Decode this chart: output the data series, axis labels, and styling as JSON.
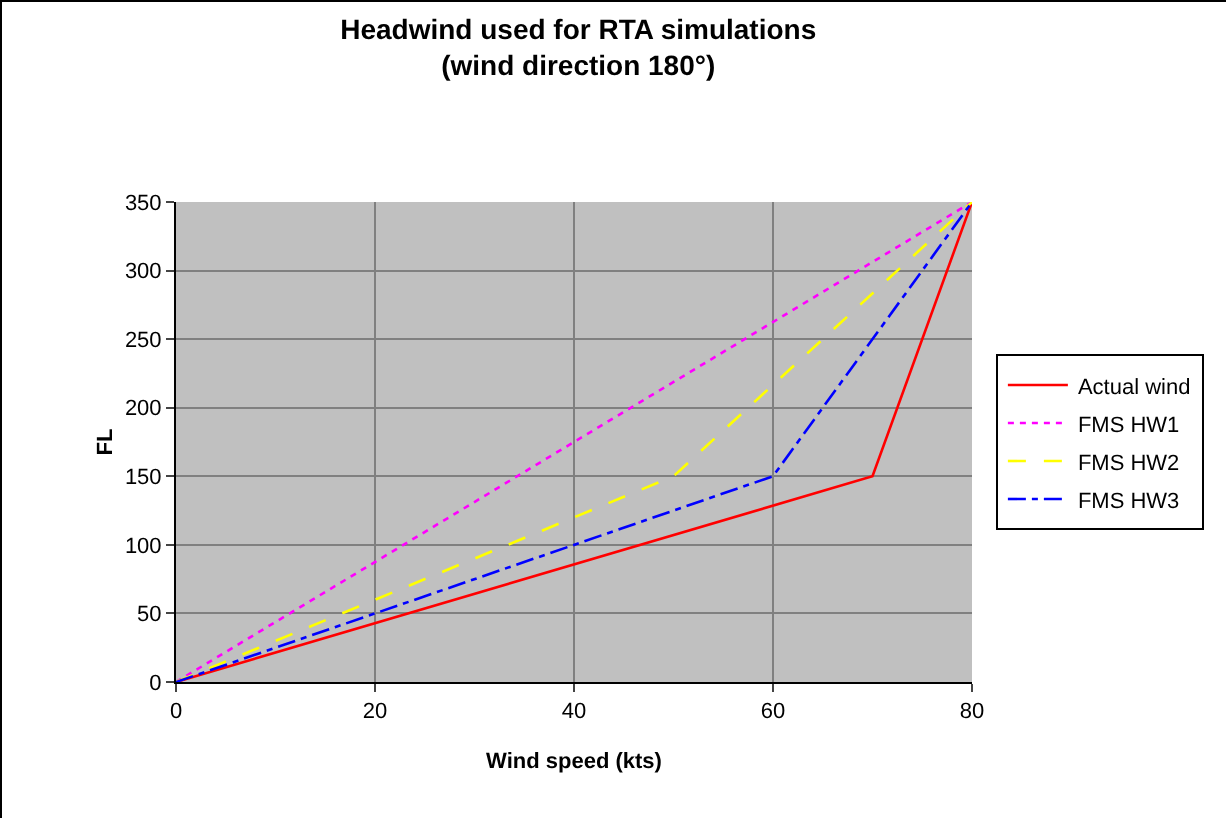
{
  "chart_data": {
    "type": "line",
    "title": "Headwind used for RTA simulations\n(wind direction 180°)",
    "xlabel": "Wind speed (kts)",
    "ylabel": "FL",
    "series": [
      {
        "name": "Actual wind",
        "color": "#ff0000",
        "line_style": "solid",
        "x": [
          0,
          70,
          80
        ],
        "values": [
          0,
          150,
          350
        ]
      },
      {
        "name": "FMS HW1",
        "color": "#ff00ff",
        "line_style": "dotted",
        "x": [
          0,
          80
        ],
        "values": [
          0,
          350
        ]
      },
      {
        "name": "FMS HW2",
        "color": "#ffff00",
        "line_style": "dashed",
        "x": [
          0,
          50,
          80
        ],
        "values": [
          0,
          150,
          350
        ]
      },
      {
        "name": "FMS HW3",
        "color": "#0000ff",
        "line_style": "dashdot",
        "x": [
          0,
          60,
          80
        ],
        "values": [
          0,
          150,
          350
        ]
      }
    ],
    "xlim": [
      0,
      80
    ],
    "xticks": [
      0,
      20,
      40,
      60,
      80
    ],
    "ylim": [
      0,
      350
    ],
    "yticks": [
      0,
      50,
      100,
      150,
      200,
      250,
      300,
      350
    ],
    "grid": true,
    "legend": "right",
    "marker": "none"
  }
}
